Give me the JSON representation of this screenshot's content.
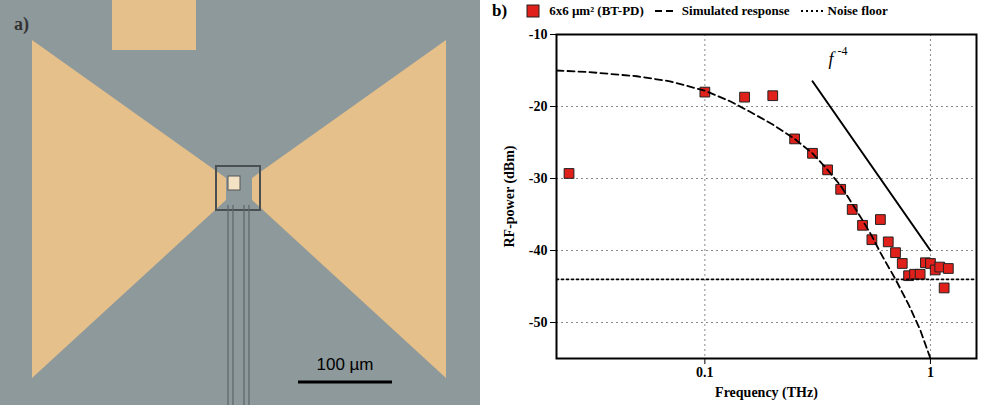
{
  "chart_data": {
    "type": "scatter",
    "panel_label": "b)",
    "xlabel": "Frequency (THz)",
    "ylabel": "RF-power (dBm)",
    "log": "x",
    "xlim": [
      0.022,
      1.6
    ],
    "xticks": [
      0.1,
      1
    ],
    "ylim": [
      -55,
      -10
    ],
    "yticks": [
      -50,
      -40,
      -30,
      -20,
      -10
    ],
    "grid": true,
    "legend": "top",
    "series": [
      {
        "name": "6x6 µm² (BT-PD)",
        "type": "scatter",
        "marker": "square",
        "color": "#e0201b",
        "x": [
          0.025,
          0.1,
          0.15,
          0.2,
          0.25,
          0.3,
          0.35,
          0.4,
          0.45,
          0.5,
          0.55,
          0.6,
          0.65,
          0.7,
          0.75,
          0.8,
          0.85,
          0.9,
          0.95,
          1.0,
          1.05,
          1.1,
          1.15,
          1.2
        ],
        "values": [
          -29.3,
          -18.0,
          -18.7,
          -18.5,
          -24.5,
          -26.5,
          -28.8,
          -31.5,
          -34.3,
          -36.5,
          -38.5,
          -35.7,
          -38.8,
          -40.3,
          -41.8,
          -43.5,
          -43.3,
          -43.3,
          -41.7,
          -41.8,
          -42.7,
          -42.3,
          -45.2,
          -42.5
        ]
      },
      {
        "name": "Simulated response",
        "type": "line",
        "line_style": "dashed",
        "color": "#000000",
        "x": [
          0.022,
          0.03,
          0.05,
          0.07,
          0.1,
          0.13,
          0.16,
          0.2,
          0.25,
          0.3,
          0.35,
          0.4,
          0.45,
          0.5,
          0.55,
          0.6,
          0.7,
          0.8,
          0.9,
          1.0
        ],
        "values": [
          -15,
          -15.2,
          -15.8,
          -16.5,
          -17.8,
          -19.3,
          -20.8,
          -22.5,
          -24.5,
          -26.5,
          -28.8,
          -31,
          -33.5,
          -35.8,
          -38,
          -40.3,
          -44,
          -47.5,
          -51,
          -55
        ]
      },
      {
        "name": "Noise floor",
        "type": "line",
        "line_style": "dotted",
        "color": "#000000",
        "x": [
          0.022,
          1.6
        ],
        "values": [
          -44,
          -44
        ]
      }
    ],
    "annotations": [
      {
        "text": "f",
        "superscript": "-4",
        "type": "line",
        "line_style": "solid",
        "color": "#000000",
        "x": [
          0.3,
          1.0
        ],
        "y": [
          -16.5,
          -40
        ]
      }
    ]
  },
  "image": {
    "label": "a)",
    "scale_bar": "100 µm"
  }
}
